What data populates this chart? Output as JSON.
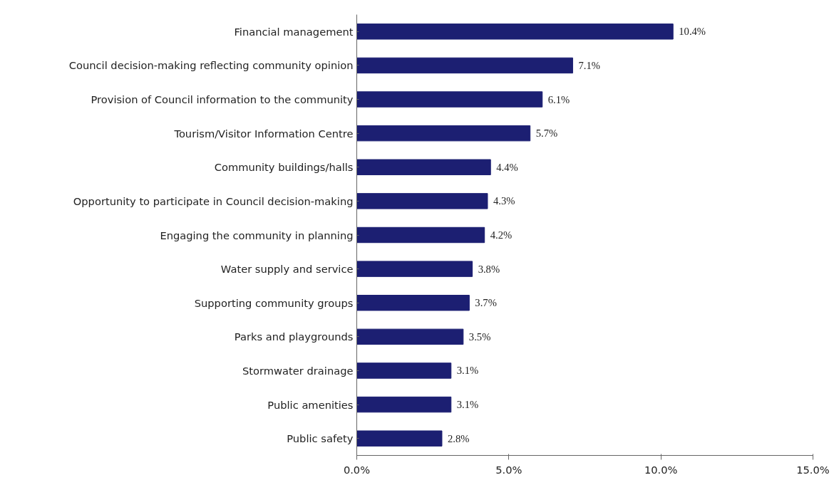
{
  "chart_data": {
    "type": "bar",
    "orientation": "horizontal",
    "categories": [
      "Financial management",
      "Council decision-making reflecting community opinion",
      "Provision of Council information to the community",
      "Tourism/Visitor Information Centre",
      "Community buildings/halls",
      "Opportunity to participate in Council decision-making",
      "Engaging the community in planning",
      "Water supply and service",
      "Supporting community groups",
      "Parks and playgrounds",
      "Stormwater drainage",
      "Public amenities",
      "Public safety"
    ],
    "values": [
      10.4,
      7.1,
      6.1,
      5.7,
      4.4,
      4.3,
      4.2,
      3.8,
      3.7,
      3.5,
      3.1,
      3.1,
      2.8
    ],
    "value_labels": [
      "10.4%",
      "7.1%",
      "6.1%",
      "5.7%",
      "4.4%",
      "4.3%",
      "4.2%",
      "3.8%",
      "3.7%",
      "3.5%",
      "3.1%",
      "3.1%",
      "2.8%"
    ],
    "color": "#1c1f72",
    "xlim": [
      0,
      15
    ],
    "xticks": [
      {
        "value": 0,
        "label": "0.0%"
      },
      {
        "value": 5,
        "label": "5.0%"
      },
      {
        "value": 10,
        "label": "10.0%"
      },
      {
        "value": 15,
        "label": "15.0%"
      }
    ],
    "grid": false
  }
}
